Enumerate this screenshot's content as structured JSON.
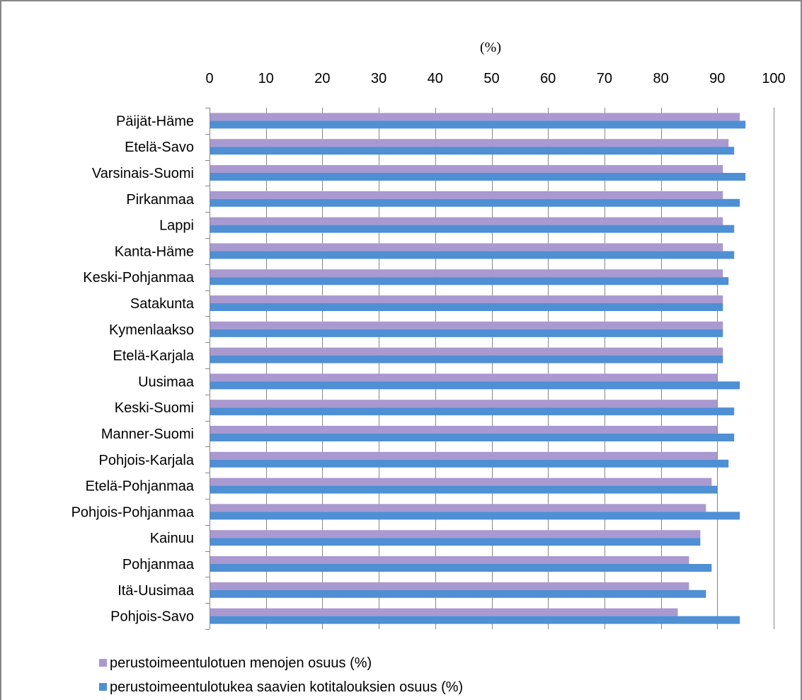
{
  "chart_data": {
    "type": "bar",
    "orientation": "horizontal",
    "unit_label": "(%)",
    "categories": [
      "Päijät-Häme",
      "Etelä-Savo",
      "Varsinais-Suomi",
      "Pirkanmaa",
      "Lappi",
      "Kanta-Häme",
      "Keski-Pohjanmaa",
      "Satakunta",
      "Kymenlaakso",
      "Etelä-Karjala",
      "Uusimaa",
      "Keski-Suomi",
      "Manner-Suomi",
      "Pohjois-Karjala",
      "Etelä-Pohjanmaa",
      "Pohjois-Pohjanmaa",
      "Kainuu",
      "Pohjanmaa",
      "Itä-Uusimaa",
      "Pohjois-Savo"
    ],
    "series": [
      {
        "name": "perustoimeentulotuen menojen osuus (%)",
        "color": "#a999d0",
        "values": [
          94,
          92,
          91,
          91,
          91,
          91,
          91,
          91,
          91,
          91,
          90,
          90,
          90,
          90,
          89,
          88,
          87,
          85,
          85,
          83
        ]
      },
      {
        "name": "perustoimeentulotukea saavien kotitalouksien osuus (%)",
        "color": "#4f8fd4",
        "values": [
          95,
          93,
          95,
          94,
          93,
          93,
          92,
          91,
          91,
          91,
          94,
          93,
          93,
          92,
          90,
          94,
          87,
          89,
          88,
          94
        ]
      }
    ],
    "xlim": [
      0,
      100
    ],
    "xticks": [
      "0",
      "10",
      "20",
      "30",
      "40",
      "50",
      "60",
      "70",
      "80",
      "90",
      "100"
    ],
    "grid": true,
    "axis_position": "top",
    "legend_position": "bottom-left"
  }
}
